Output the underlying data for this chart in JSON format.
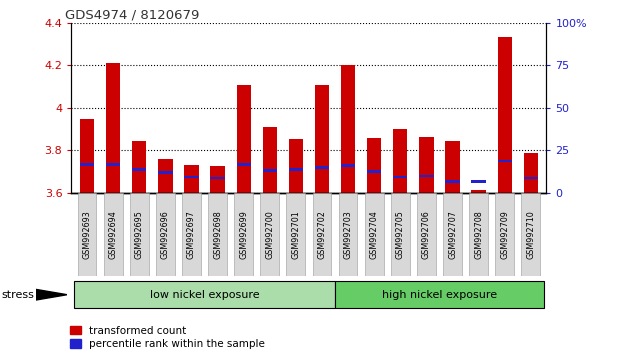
{
  "title": "GDS4974 / 8120679",
  "samples": [
    "GSM992693",
    "GSM992694",
    "GSM992695",
    "GSM992696",
    "GSM992697",
    "GSM992698",
    "GSM992699",
    "GSM992700",
    "GSM992701",
    "GSM992702",
    "GSM992703",
    "GSM992704",
    "GSM992705",
    "GSM992706",
    "GSM992707",
    "GSM992708",
    "GSM992709",
    "GSM992710"
  ],
  "red_values": [
    3.95,
    4.21,
    3.845,
    3.76,
    3.73,
    3.725,
    4.11,
    3.91,
    3.855,
    4.11,
    4.2,
    3.86,
    3.9,
    3.865,
    3.845,
    3.615,
    4.335,
    3.79
  ],
  "blue_values": [
    3.735,
    3.735,
    3.71,
    3.695,
    3.675,
    3.67,
    3.735,
    3.705,
    3.71,
    3.72,
    3.73,
    3.7,
    3.675,
    3.68,
    3.655,
    3.655,
    3.75,
    3.67
  ],
  "ymin": 3.6,
  "ymax": 4.4,
  "yticks": [
    3.6,
    3.8,
    4.0,
    4.2,
    4.4
  ],
  "ytick_labels": [
    "3.6",
    "3.8",
    "4",
    "4.2",
    "4.4"
  ],
  "right_yticks": [
    0,
    25,
    50,
    75,
    100
  ],
  "right_ytick_labels": [
    "0",
    "25",
    "50",
    "75",
    "100%"
  ],
  "low_nickel_count": 10,
  "low_nickel_label": "low nickel exposure",
  "high_nickel_label": "high nickel exposure",
  "stress_label": "stress",
  "legend_red": "transformed count",
  "legend_blue": "percentile rank within the sample",
  "bar_color": "#cc0000",
  "blue_color": "#2222cc",
  "low_nickel_color": "#aaddaa",
  "high_nickel_color": "#66cc66",
  "bar_width": 0.55,
  "blue_bar_height": 0.012
}
